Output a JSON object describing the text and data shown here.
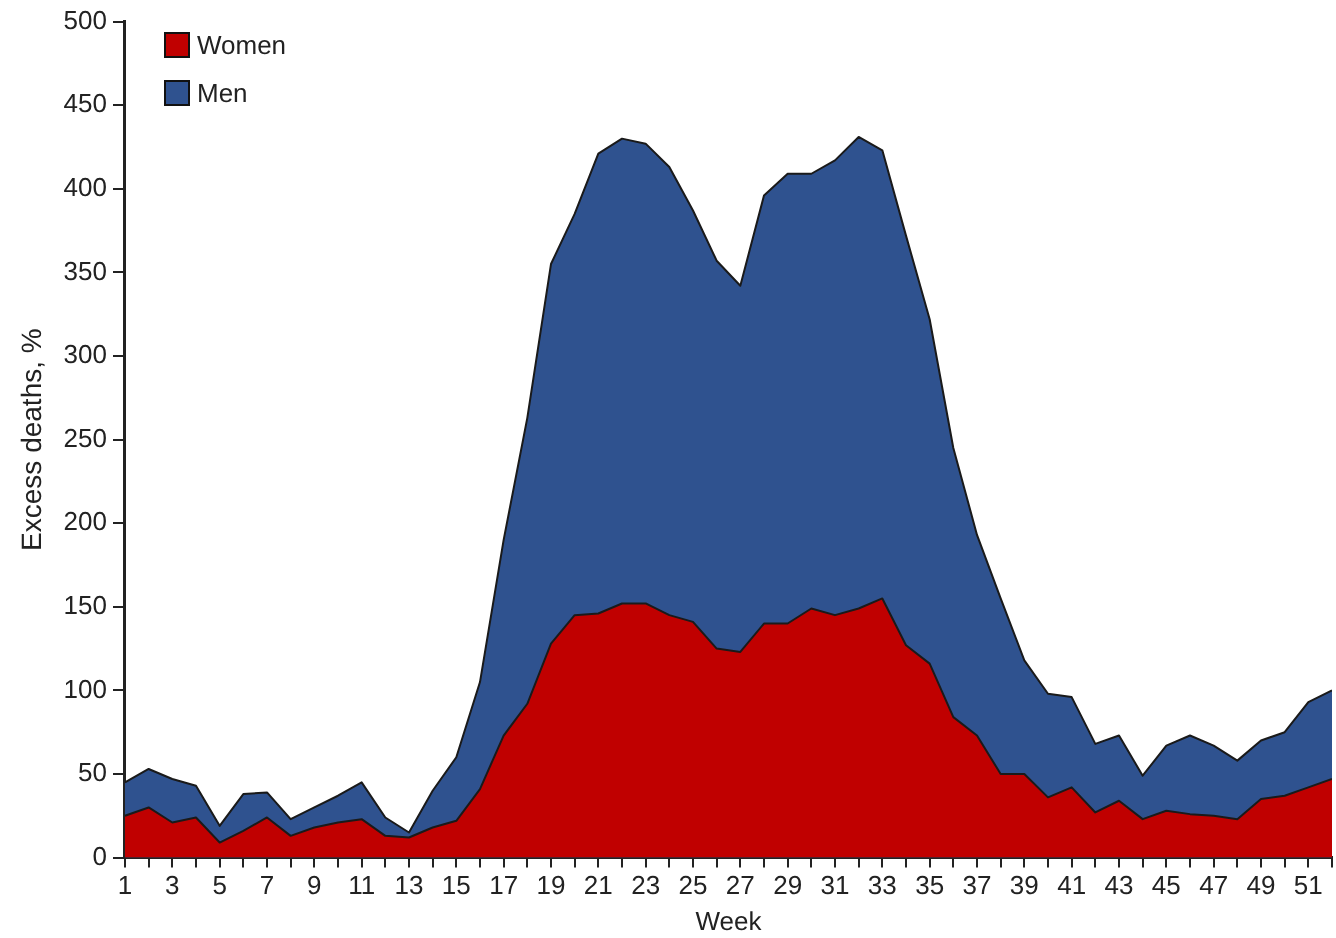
{
  "chart_data": {
    "type": "area",
    "xlabel": "Week",
    "ylabel": "Excess deaths, %",
    "x": [
      1,
      2,
      3,
      4,
      5,
      6,
      7,
      8,
      9,
      10,
      11,
      12,
      13,
      14,
      15,
      16,
      17,
      18,
      19,
      20,
      21,
      22,
      23,
      24,
      25,
      26,
      27,
      28,
      29,
      30,
      31,
      32,
      33,
      34,
      35,
      36,
      37,
      38,
      39,
      40,
      41,
      42,
      43,
      44,
      45,
      46,
      47,
      48,
      49,
      50,
      51,
      52
    ],
    "series": [
      {
        "name": "Women",
        "color": "#c00000",
        "values": [
          25,
          30,
          21,
          24,
          9,
          16,
          24,
          13,
          18,
          21,
          23,
          13,
          12,
          18,
          22,
          41,
          73,
          92,
          128,
          145,
          146,
          152,
          152,
          145,
          141,
          125,
          123,
          140,
          140,
          149,
          145,
          149,
          155,
          127,
          116,
          84,
          73,
          50,
          50,
          36,
          42,
          27,
          34,
          23,
          28,
          26,
          25,
          23,
          35,
          37,
          42,
          47
        ]
      },
      {
        "name": "Men",
        "color": "#2f528f",
        "values": [
          45,
          53,
          47,
          43,
          19,
          38,
          39,
          23,
          30,
          37,
          45,
          24,
          15,
          40,
          60,
          105,
          190,
          263,
          355,
          385,
          421,
          430,
          427,
          413,
          387,
          357,
          342,
          396,
          409,
          409,
          417,
          431,
          423,
          372,
          322,
          245,
          193,
          155,
          118,
          98,
          96,
          68,
          73,
          49,
          67,
          73,
          67,
          58,
          70,
          75,
          93,
          100
        ]
      }
    ],
    "xlim": [
      1,
      52
    ],
    "xticks": [
      1,
      {
        "value": 2,
        "label": null
      },
      3,
      {
        "value": 4,
        "label": null
      },
      5,
      {
        "value": 6,
        "label": null
      },
      7,
      {
        "value": 8,
        "label": null
      },
      9,
      {
        "value": 10,
        "label": null
      },
      11,
      {
        "value": 12,
        "label": null
      },
      13,
      {
        "value": 14,
        "label": null
      },
      15,
      {
        "value": 16,
        "label": null
      },
      17,
      {
        "value": 18,
        "label": null
      },
      19,
      {
        "value": 20,
        "label": null
      },
      21,
      {
        "value": 22,
        "label": null
      },
      23,
      {
        "value": 24,
        "label": null
      },
      25,
      {
        "value": 26,
        "label": null
      },
      27,
      {
        "value": 28,
        "label": null
      },
      29,
      {
        "value": 30,
        "label": null
      },
      31,
      {
        "value": 32,
        "label": null
      },
      33,
      {
        "value": 34,
        "label": null
      },
      35,
      {
        "value": 36,
        "label": null
      },
      37,
      {
        "value": 38,
        "label": null
      },
      39,
      {
        "value": 40,
        "label": null
      },
      41,
      {
        "value": 42,
        "label": null
      },
      43,
      {
        "value": 44,
        "label": null
      },
      45,
      {
        "value": 46,
        "label": null
      },
      47,
      {
        "value": 48,
        "label": null
      },
      49,
      {
        "value": 50,
        "label": null
      },
      51,
      {
        "value": 52,
        "label": null
      }
    ],
    "ylim": [
      0,
      500
    ],
    "yticks": [
      0,
      50,
      100,
      150,
      200,
      250,
      300,
      350,
      400,
      450,
      500
    ],
    "grid": false,
    "legend": "top left"
  }
}
